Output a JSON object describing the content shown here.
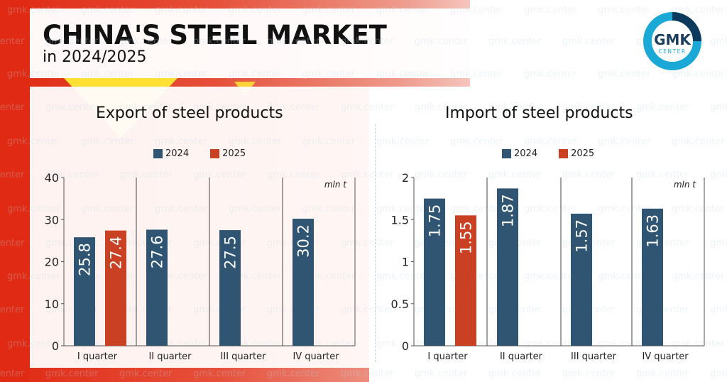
{
  "header": {
    "title": "CHINA'S STEEL MARKET",
    "subtitle": "in 2024/2025"
  },
  "logo": {
    "line1": "GMK",
    "line2": "CENTER"
  },
  "watermark": "gmk.center",
  "colors": {
    "series_2024": "#2f5573",
    "series_2025": "#c94023",
    "brand_red": "#e02a14",
    "logo_light": "#1aa8d6",
    "logo_dark": "#0b3a5c"
  },
  "chart_data": [
    {
      "type": "bar",
      "title": "Export of steel products",
      "unit_label": "mln t",
      "categories": [
        "I quarter",
        "II quarter",
        "III quarter",
        "IV quarter"
      ],
      "series": [
        {
          "name": "2024",
          "values": [
            25.8,
            27.6,
            27.5,
            30.2
          ],
          "labels": [
            "25.8",
            "27.6",
            "27.5",
            "30.2"
          ]
        },
        {
          "name": "2025",
          "values": [
            27.4,
            null,
            null,
            null
          ],
          "labels": [
            "27.4",
            null,
            null,
            null
          ]
        }
      ],
      "ylim": [
        0,
        40
      ],
      "yticks": [
        0,
        10,
        20,
        30,
        40
      ],
      "ytick_labels": [
        "0",
        "10",
        "20",
        "30",
        "40"
      ],
      "legend": "top-center",
      "grid": false
    },
    {
      "type": "bar",
      "title": "Import of steel products",
      "unit_label": "mln t",
      "categories": [
        "I quarter",
        "II quarter",
        "III quarter",
        "IV quarter"
      ],
      "series": [
        {
          "name": "2024",
          "values": [
            1.75,
            1.87,
            1.57,
            1.63
          ],
          "labels": [
            "1.75",
            "1.87",
            "1.57",
            "1.63"
          ]
        },
        {
          "name": "2025",
          "values": [
            1.55,
            null,
            null,
            null
          ],
          "labels": [
            "1.55",
            null,
            null,
            null
          ]
        }
      ],
      "ylim": [
        0,
        2
      ],
      "yticks": [
        0,
        0.5,
        1,
        1.5,
        2
      ],
      "ytick_labels": [
        "0",
        "0.5",
        "1",
        "1.5",
        "2"
      ],
      "legend": "top-center",
      "grid": false
    }
  ]
}
